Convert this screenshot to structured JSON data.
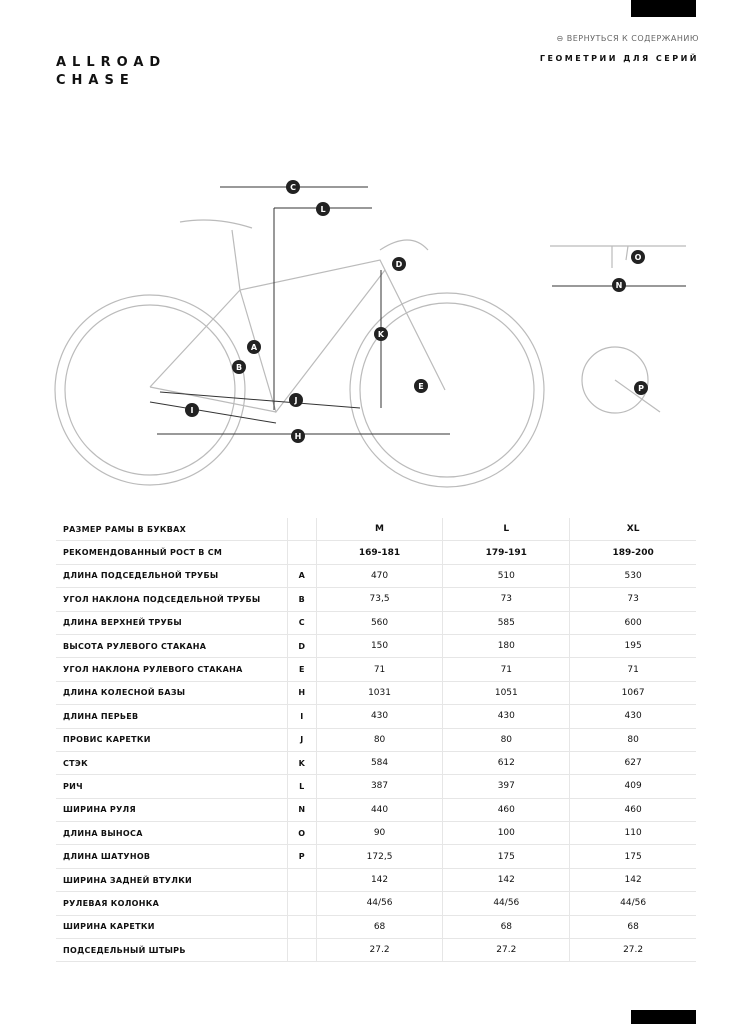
{
  "header": {
    "title_lines": [
      "ALLROAD",
      "CHASE"
    ],
    "back_link": "ВЕРНУТЬСЯ К СОДЕРЖАНИЮ",
    "subtitle": "ГЕОМЕТРИИ ДЛЯ СЕРИЙ"
  },
  "diagram": {
    "labels": [
      "C",
      "L",
      "D",
      "A",
      "B",
      "K",
      "E",
      "J",
      "I",
      "H",
      "O",
      "N",
      "P"
    ]
  },
  "table": {
    "rows": [
      [
        "РАЗМЕР РАМЫ В БУКВАХ",
        "",
        "M",
        "L",
        "XL"
      ],
      [
        "РЕКОМЕНДОВАННЫЙ РОСТ В СМ",
        "",
        "169-181",
        "179-191",
        "189-200"
      ],
      [
        "ДЛИНА ПОДСЕДЕЛЬНОЙ ТРУБЫ",
        "A",
        "470",
        "510",
        "530"
      ],
      [
        "УГОЛ НАКЛОНА ПОДСЕДЕЛЬНОЙ ТРУБЫ",
        "B",
        "73,5",
        "73",
        "73"
      ],
      [
        "ДЛИНА ВЕРХНЕЙ ТРУБЫ",
        "C",
        "560",
        "585",
        "600"
      ],
      [
        "ВЫСОТА РУЛЕВОГО СТАКАНА",
        "D",
        "150",
        "180",
        "195"
      ],
      [
        "УГОЛ НАКЛОНА РУЛЕВОГО СТАКАНА",
        "E",
        "71",
        "71",
        "71"
      ],
      [
        "ДЛИНА КОЛЕСНОЙ БАЗЫ",
        "H",
        "1031",
        "1051",
        "1067"
      ],
      [
        "ДЛИНА ПЕРЬЕВ",
        "I",
        "430",
        "430",
        "430"
      ],
      [
        "ПРОВИС КАРЕТКИ",
        "J",
        "80",
        "80",
        "80"
      ],
      [
        "СТЭК",
        "K",
        "584",
        "612",
        "627"
      ],
      [
        "РИЧ",
        "L",
        "387",
        "397",
        "409"
      ],
      [
        "ШИРИНА РУЛЯ",
        "N",
        "440",
        "460",
        "460"
      ],
      [
        "ДЛИНА ВЫНОСА",
        "O",
        "90",
        "100",
        "110"
      ],
      [
        "ДЛИНА ШАТУНОВ",
        "P",
        "172,5",
        "175",
        "175"
      ],
      [
        "ШИРИНА ЗАДНЕЙ ВТУЛКИ",
        "",
        "142",
        "142",
        "142"
      ],
      [
        "РУЛЕВАЯ КОЛОНКА",
        "",
        "44/56",
        "44/56",
        "44/56"
      ],
      [
        "ШИРИНА КАРЕТКИ",
        "",
        "68",
        "68",
        "68"
      ],
      [
        "ПОДСЕДЕЛЬНЫЙ ШТЫРЬ",
        "",
        "27.2",
        "27.2",
        "27.2"
      ]
    ]
  }
}
